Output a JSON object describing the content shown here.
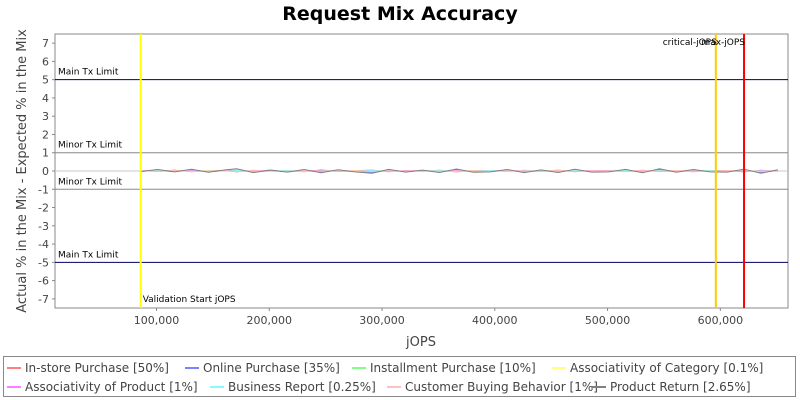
{
  "chart_data": {
    "type": "line",
    "title": "Request Mix Accuracy",
    "xlabel": "jOPS",
    "ylabel": "Actual % in the Mix - Expected % in the Mix",
    "xlim": [
      10000,
      660000
    ],
    "ylim": [
      -7.5,
      7.5
    ],
    "x_ticks": [
      100000,
      200000,
      300000,
      400000,
      500000,
      600000
    ],
    "x_tick_labels": [
      "100,000",
      "200,000",
      "300,000",
      "400,000",
      "500,000",
      "600,000"
    ],
    "y_ticks": [
      7,
      6,
      5,
      4,
      3,
      2,
      1,
      0,
      -1,
      -2,
      -3,
      -4,
      -5,
      -6,
      -7
    ],
    "grid": false,
    "legend_position": "bottom",
    "limit_lines": [
      {
        "label": "Main Tx Limit",
        "y": 5,
        "color": "#000066"
      },
      {
        "label": "Minor Tx Limit",
        "y": 1,
        "color": "#888888"
      },
      {
        "label": "Minor Tx Limit",
        "y": -1,
        "color": "#888888"
      },
      {
        "label": "Main Tx Limit",
        "y": -5,
        "color": "#000066"
      }
    ],
    "markers": [
      {
        "label": "Validation Start jOPS",
        "x": 86000,
        "color": "#ffff00"
      },
      {
        "label": "critical-jOPS",
        "x": 596000,
        "color": "#ffcc00"
      },
      {
        "label": "max-jOPS",
        "x": 621000,
        "color": "#ff0000"
      }
    ],
    "series": [
      {
        "name": "In-store Purchase [50%]",
        "color": "#ff8080"
      },
      {
        "name": "Online Purchase [35%]",
        "color": "#8080ff"
      },
      {
        "name": "Installment Purchase [10%]",
        "color": "#80ff80"
      },
      {
        "name": "Associativity of Category [0.1%]",
        "color": "#ffff80"
      },
      {
        "name": "Associativity of Product [1%]",
        "color": "#ff80ff"
      },
      {
        "name": "Business Report [0.25%]",
        "color": "#80ffff"
      },
      {
        "name": "Customer Buying Behavior [1%]",
        "color": "#ffc0c0"
      },
      {
        "name": "Product Return [2.65%]",
        "color": "#808080"
      }
    ],
    "x": [
      86000,
      101000,
      116000,
      131000,
      146000,
      161000,
      171000,
      186000,
      201000,
      216000,
      231000,
      246000,
      261000,
      276000,
      291000,
      306000,
      321000,
      336000,
      351000,
      366000,
      381000,
      396000,
      411000,
      426000,
      441000,
      456000,
      471000,
      486000,
      501000,
      516000,
      531000,
      546000,
      561000,
      576000,
      591000,
      606000,
      621000,
      636000,
      651000
    ],
    "series_values": [
      [
        0.02,
        -0.03,
        0.05,
        -0.04,
        0.03,
        0.02,
        -0.05,
        0.04,
        -0.02,
        0.03,
        -0.04,
        0.06,
        -0.03,
        0.02,
        0.05,
        -0.04,
        0.03,
        -0.02,
        0.04,
        -0.05,
        0.03,
        0.02,
        -0.03,
        0.04,
        -0.02,
        0.05,
        -0.04,
        0.03,
        0.02,
        -0.03,
        0.04,
        -0.02,
        0.03,
        -0.04,
        0.02,
        0.03,
        -0.05,
        0.04,
        -0.02
      ],
      [
        -0.02,
        0.04,
        -0.03,
        0.05,
        -0.04,
        0.02,
        0.04,
        -0.03,
        0.05,
        -0.04,
        0.03,
        -0.05,
        0.04,
        -0.02,
        -0.06,
        0.05,
        -0.03,
        0.02,
        -0.04,
        0.06,
        -0.03,
        -0.02,
        0.04,
        -0.05,
        0.03,
        -0.04,
        0.05,
        -0.03,
        -0.02,
        0.04,
        -0.05,
        0.06,
        -0.03,
        0.04,
        -0.02,
        -0.03,
        0.05,
        -0.06,
        0.03
      ],
      [
        0.0,
        -0.01,
        0.01,
        -0.02,
        0.01,
        0.0,
        0.02,
        -0.01,
        0.0,
        0.01,
        -0.02,
        0.01,
        0.0,
        -0.01,
        0.02,
        0.0,
        -0.01,
        0.01,
        0.0,
        -0.02,
        0.01,
        0.0,
        0.01,
        -0.01,
        0.0,
        0.02,
        -0.01,
        0.0,
        0.01,
        -0.02,
        0.0,
        0.01,
        -0.01,
        0.0,
        0.02,
        -0.01,
        0.0,
        0.01,
        -0.02
      ],
      [
        0.0,
        0.01,
        -0.01,
        0.0,
        0.02,
        -0.01,
        0.0,
        0.01,
        -0.02,
        0.0,
        0.01,
        0.0,
        -0.01,
        0.02,
        0.0,
        -0.01,
        0.0,
        0.01,
        -0.02,
        0.0,
        0.01,
        -0.01,
        0.0,
        0.02,
        -0.01,
        0.0,
        0.01,
        0.0,
        -0.02,
        0.01,
        0.0,
        -0.01,
        0.02,
        0.0,
        -0.01,
        0.01,
        0.0,
        -0.02,
        0.01
      ],
      [
        0.01,
        0.0,
        -0.02,
        0.03,
        -0.01,
        0.02,
        -0.03,
        0.01,
        0.02,
        -0.02,
        0.01,
        0.03,
        -0.02,
        0.0,
        0.02,
        -0.03,
        0.01,
        0.02,
        -0.01,
        0.03,
        -0.02,
        0.01,
        0.0,
        0.02,
        -0.03,
        0.01,
        -0.02,
        0.03,
        0.01,
        -0.01,
        0.02,
        -0.03,
        0.0,
        0.02,
        -0.01,
        0.01,
        -0.03,
        0.02,
        0.0
      ],
      [
        -0.01,
        0.02,
        0.0,
        -0.02,
        0.01,
        -0.01,
        0.02,
        0.0,
        -0.01,
        0.02,
        -0.02,
        0.0,
        0.01,
        -0.02,
        0.02,
        0.0,
        -0.01,
        0.01,
        0.02,
        -0.01,
        0.0,
        0.02,
        -0.02,
        0.01,
        0.0,
        -0.01,
        0.02,
        -0.02,
        0.0,
        0.01,
        -0.01,
        0.02,
        0.0,
        -0.02,
        0.01,
        0.0,
        0.02,
        -0.01,
        0.0
      ],
      [
        0.02,
        -0.01,
        0.03,
        -0.02,
        0.0,
        0.02,
        -0.03,
        0.01,
        0.0,
        -0.02,
        0.03,
        -0.01,
        0.02,
        0.0,
        -0.03,
        0.02,
        -0.01,
        0.03,
        -0.02,
        0.0,
        0.01,
        -0.03,
        0.02,
        0.0,
        -0.01,
        0.03,
        -0.02,
        0.01,
        0.0,
        -0.03,
        0.02,
        -0.01,
        0.03,
        0.0,
        -0.02,
        0.01,
        0.02,
        -0.03,
        0.01
      ],
      [
        -0.03,
        0.08,
        -0.05,
        0.1,
        -0.07,
        0.06,
        0.12,
        -0.09,
        0.05,
        -0.06,
        0.08,
        -0.1,
        0.07,
        -0.05,
        -0.12,
        0.09,
        -0.06,
        0.05,
        -0.08,
        0.11,
        -0.07,
        -0.05,
        0.08,
        -0.09,
        0.06,
        -0.08,
        0.1,
        -0.06,
        -0.05,
        0.09,
        -0.1,
        0.12,
        -0.07,
        0.08,
        -0.05,
        -0.06,
        0.1,
        -0.12,
        0.07
      ]
    ]
  }
}
